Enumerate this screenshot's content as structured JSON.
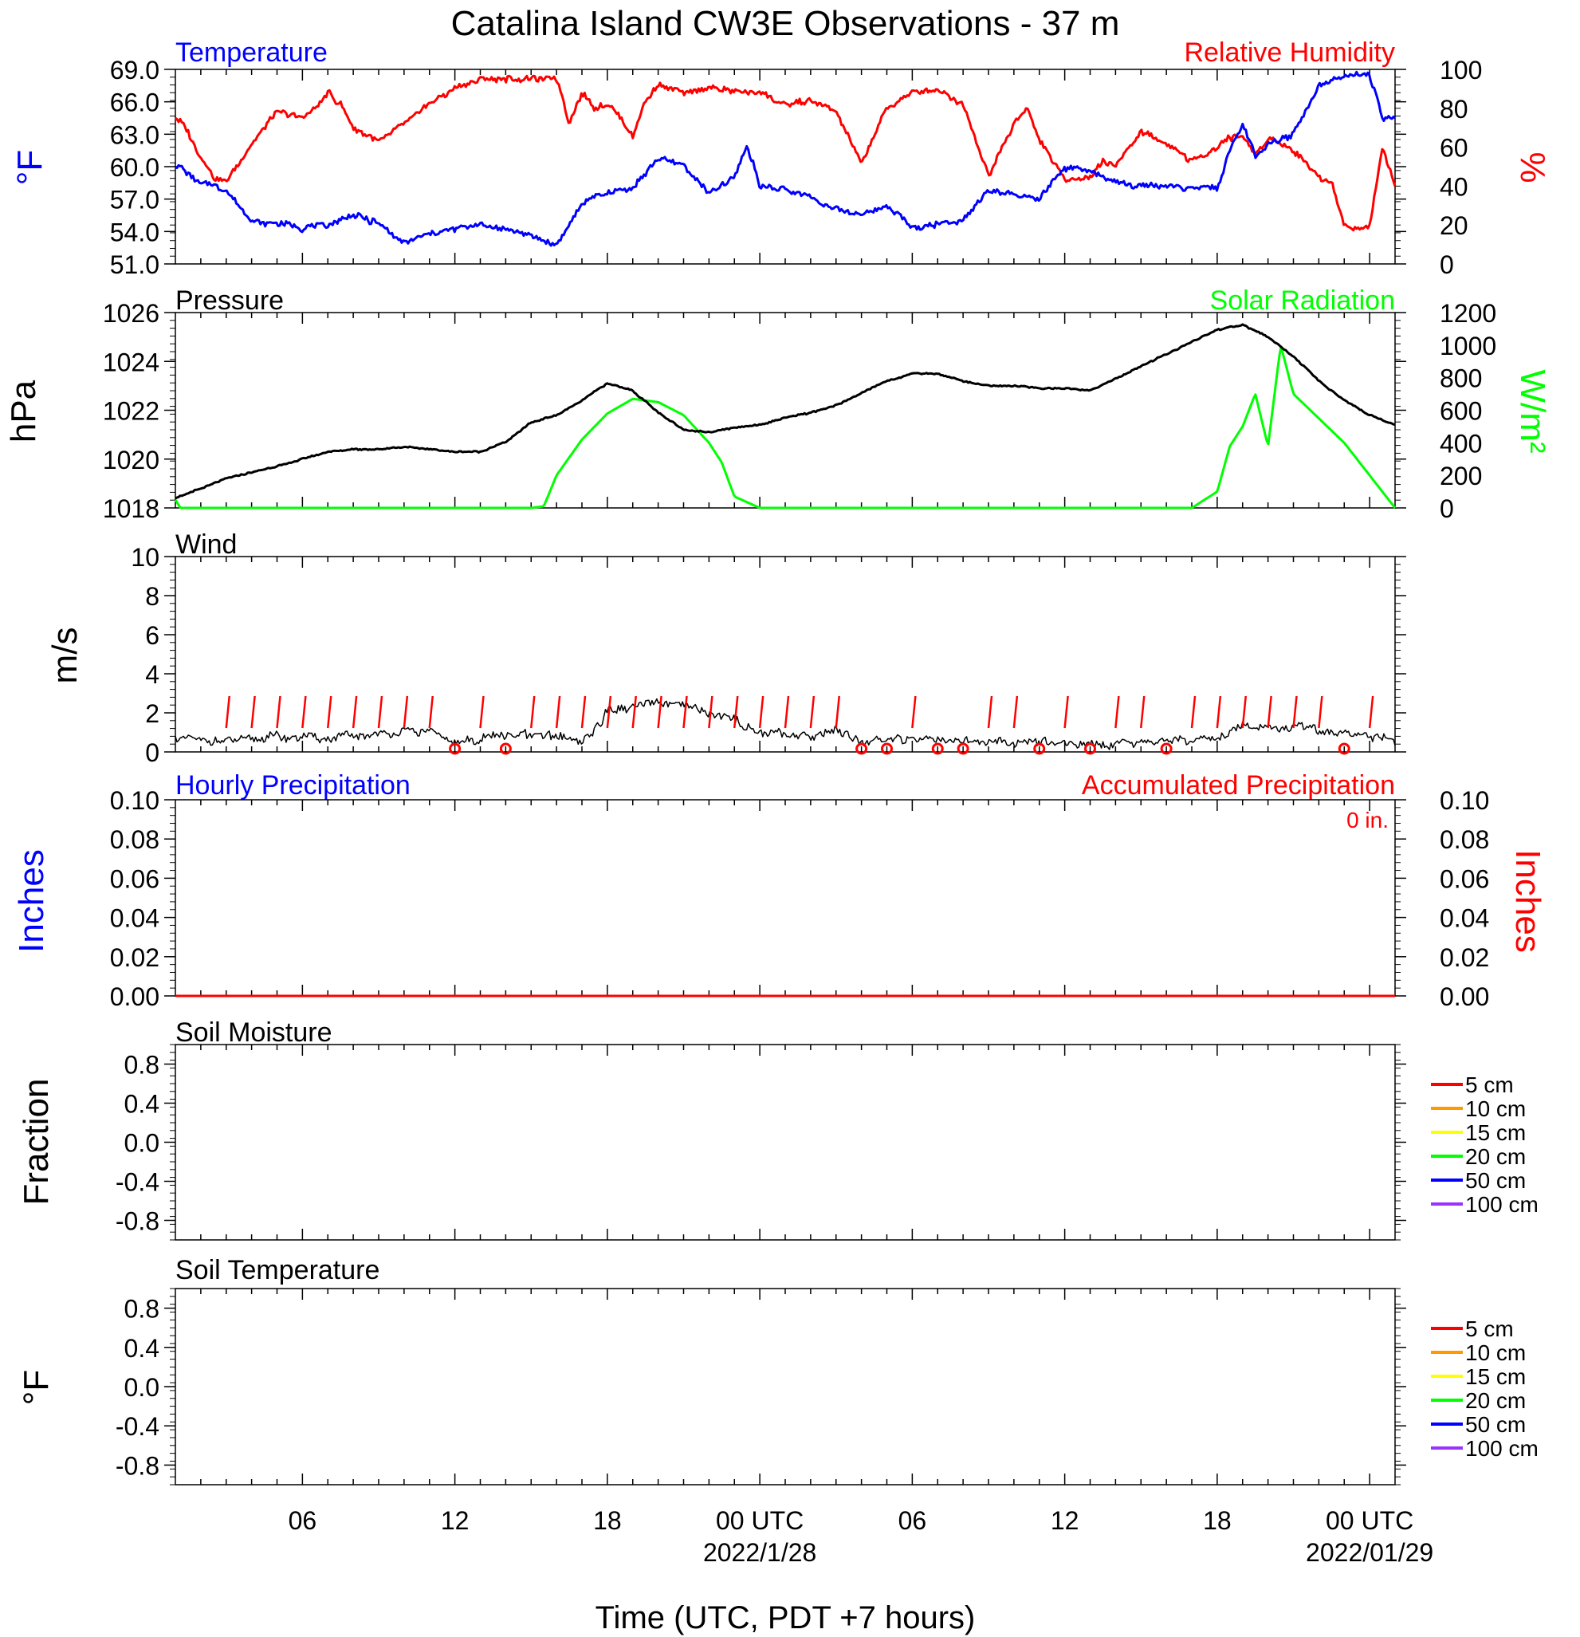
{
  "title": "Catalina Island CW3E Observations - 37 m",
  "xaxis": {
    "label": "Time (UTC, PDT +7 hours)",
    "hours_range": [
      -5,
      43
    ],
    "ticks": [
      {
        "hour": 0,
        "label": "06"
      },
      {
        "hour": 6,
        "label": "12"
      },
      {
        "hour": 12,
        "label": "18"
      },
      {
        "hour": 18,
        "label": "00 UTC",
        "sub": "2022/1/28"
      },
      {
        "hour": 24,
        "label": "06"
      },
      {
        "hour": 30,
        "label": "12"
      },
      {
        "hour": 36,
        "label": "18"
      },
      {
        "hour": 42,
        "label": "00 UTC",
        "sub": "2022/01/29"
      }
    ]
  },
  "panels": {
    "temperature": {
      "left_title": "Temperature",
      "right_title": "Relative Humidity",
      "left_unit": "°F",
      "right_unit": "%",
      "left_ticks": [
        "69.0",
        "66.0",
        "63.0",
        "60.0",
        "57.0",
        "54.0",
        "51.0"
      ],
      "right_ticks": [
        "100",
        "80",
        "60",
        "40",
        "20",
        "0"
      ]
    },
    "pressure": {
      "left_title": "Pressure",
      "right_title": "Solar Radiation",
      "left_unit": "hPa",
      "right_unit": "W/m²",
      "left_ticks": [
        "1026",
        "1024",
        "1022",
        "1020",
        "1018"
      ],
      "right_ticks": [
        "1200",
        "1000",
        "800",
        "600",
        "400",
        "200",
        "0"
      ]
    },
    "wind": {
      "left_title": "Wind",
      "left_unit": "m/s",
      "left_ticks": [
        "10",
        "8",
        "6",
        "4",
        "2",
        "0"
      ]
    },
    "precip": {
      "left_title": "Hourly Precipitation",
      "right_title": "Accumulated Precipitation",
      "left_unit": "Inches",
      "right_unit": "Inches",
      "accum_text": "0 in.",
      "left_ticks": [
        "0.10",
        "0.08",
        "0.06",
        "0.04",
        "0.02",
        "0.00"
      ],
      "right_ticks": [
        "0.10",
        "0.08",
        "0.06",
        "0.04",
        "0.02",
        "0.00"
      ]
    },
    "soil_moisture": {
      "left_title": "Soil Moisture",
      "left_unit": "Fraction",
      "left_ticks": [
        "0.8",
        "0.4",
        "0.0",
        "-0.4",
        "-0.8"
      ]
    },
    "soil_temp": {
      "left_title": "Soil Temperature",
      "left_unit": "°F",
      "left_ticks": [
        "0.8",
        "0.4",
        "0.0",
        "-0.4",
        "-0.8"
      ]
    }
  },
  "soil_legend": [
    {
      "label": "5 cm",
      "color": "#ff0000"
    },
    {
      "label": "10 cm",
      "color": "#ff9900"
    },
    {
      "label": "15 cm",
      "color": "#ffff00"
    },
    {
      "label": "20 cm",
      "color": "#00ff00"
    },
    {
      "label": "50 cm",
      "color": "#0000ff"
    },
    {
      "label": "100 cm",
      "color": "#9933ff"
    }
  ],
  "colors": {
    "temperature": "#0000ff",
    "humidity": "#ff0000",
    "pressure": "#000000",
    "solar": "#00ff00",
    "wind": "#000000",
    "barb": "#ff0000",
    "precip": "#ff0000"
  },
  "chart_data": [
    {
      "type": "line",
      "title": "Temperature",
      "ylabel": "°F",
      "ylim": [
        51,
        69
      ],
      "series": [
        {
          "name": "Temperature",
          "x": [
            -5,
            -4.5,
            -4,
            -3.5,
            -3,
            -2.5,
            -2,
            -1.5,
            -1,
            0,
            1,
            2,
            3,
            4,
            5,
            6,
            7,
            8,
            9,
            10,
            11,
            11.5,
            12,
            13,
            14,
            15,
            16,
            17,
            17.5,
            18,
            19,
            20,
            21,
            22,
            23,
            24,
            25,
            26,
            27,
            28,
            29,
            30,
            31,
            32,
            33,
            34,
            35,
            36,
            36.5,
            37,
            37.5,
            38,
            39,
            40,
            41,
            42,
            42.5,
            43
          ],
          "y": [
            60.2,
            59.4,
            58.5,
            58.3,
            57.8,
            56.5,
            55.0,
            54.6,
            54.8,
            54.3,
            54.6,
            55.6,
            54.7,
            52.9,
            53.7,
            54.3,
            54.6,
            54.2,
            53.7,
            52.8,
            56.5,
            57.3,
            57.5,
            58.0,
            60.8,
            60.2,
            57.4,
            59.0,
            62.0,
            58.3,
            57.8,
            57.2,
            56.0,
            55.6,
            56.4,
            54.4,
            54.7,
            55.1,
            57.7,
            57.4,
            57.0,
            59.9,
            59.6,
            58.5,
            58.2,
            58.3,
            57.9,
            58.0,
            61.5,
            64.0,
            61.0,
            62.0,
            63.0,
            67.5,
            68.5,
            68.5,
            64.5,
            64.5
          ]
        }
      ]
    },
    {
      "type": "line",
      "title": "Relative Humidity",
      "ylabel": "%",
      "ylim": [
        0,
        100
      ],
      "series": [
        {
          "name": "Relative Humidity",
          "x": [
            -5,
            -4.5,
            -4,
            -3.5,
            -3,
            -2,
            -1,
            0,
            0.5,
            1,
            1.5,
            2,
            3,
            4,
            5,
            6,
            7,
            8,
            9,
            10,
            10.5,
            11,
            11.5,
            12,
            12.5,
            13,
            13.5,
            14,
            15,
            16,
            17,
            18,
            19,
            20,
            21,
            22,
            23,
            24,
            25,
            26,
            27,
            28,
            28.5,
            29,
            30,
            31,
            31.5,
            32,
            33,
            34,
            35,
            36,
            36.5,
            37,
            37.5,
            38,
            39,
            40,
            40.5,
            41,
            41.5,
            42,
            42.5,
            43
          ],
          "y": [
            76,
            68,
            55,
            45,
            42,
            62,
            78,
            75,
            80,
            88,
            82,
            70,
            63,
            72,
            83,
            90,
            95,
            95,
            95,
            96,
            73,
            88,
            80,
            82,
            76,
            66,
            84,
            92,
            88,
            90,
            89,
            88,
            82,
            84,
            78,
            52,
            80,
            88,
            90,
            82,
            45,
            72,
            80,
            64,
            43,
            45,
            53,
            50,
            68,
            62,
            53,
            60,
            65,
            66,
            56,
            65,
            58,
            45,
            42,
            20,
            18,
            20,
            60,
            40
          ]
        }
      ]
    },
    {
      "type": "line",
      "title": "Pressure",
      "ylabel": "hPa",
      "ylim": [
        1018,
        1026
      ],
      "series": [
        {
          "name": "Pressure",
          "x": [
            -5,
            -3,
            -1,
            0,
            1,
            2,
            3,
            4,
            5,
            6,
            7,
            8,
            9,
            10,
            11,
            12,
            13,
            14,
            15,
            16,
            17,
            18,
            19,
            20,
            21,
            22,
            23,
            24,
            25,
            26,
            27,
            28,
            29,
            30,
            31,
            32,
            33,
            34,
            35,
            36,
            37,
            38,
            39,
            40,
            41,
            42,
            43
          ],
          "y": [
            1018.4,
            1019.2,
            1019.7,
            1020.0,
            1020.3,
            1020.4,
            1020.4,
            1020.5,
            1020.4,
            1020.3,
            1020.3,
            1020.7,
            1021.5,
            1021.8,
            1022.4,
            1023.1,
            1022.8,
            1021.9,
            1021.2,
            1021.1,
            1021.3,
            1021.4,
            1021.7,
            1021.9,
            1022.2,
            1022.7,
            1023.2,
            1023.5,
            1023.5,
            1023.2,
            1023.0,
            1023.0,
            1022.9,
            1022.9,
            1022.8,
            1023.3,
            1023.8,
            1024.3,
            1024.8,
            1025.3,
            1025.5,
            1025.0,
            1024.2,
            1023.2,
            1022.4,
            1021.8,
            1021.4
          ]
        }
      ]
    },
    {
      "type": "line",
      "title": "Solar Radiation",
      "ylabel": "W/m²",
      "ylim": [
        0,
        1200
      ],
      "series": [
        {
          "name": "Solar Radiation",
          "x": [
            -5,
            -4.8,
            9,
            9.5,
            10,
            11,
            12,
            13,
            14,
            15,
            16,
            16.5,
            17,
            18,
            26,
            30,
            34,
            35,
            35.5,
            36,
            36.5,
            37,
            37.5,
            38,
            38.5,
            39,
            40,
            41,
            42,
            43
          ],
          "y": [
            50,
            0,
            0,
            10,
            200,
            420,
            580,
            670,
            650,
            570,
            400,
            280,
            70,
            0,
            0,
            0,
            0,
            0,
            50,
            100,
            380,
            500,
            700,
            380,
            1000,
            700,
            550,
            400,
            200,
            0
          ]
        }
      ]
    },
    {
      "type": "line",
      "title": "Wind",
      "ylabel": "m/s",
      "ylim": [
        0,
        10
      ],
      "series": [
        {
          "name": "Wind",
          "x": [
            -5,
            -3,
            -1,
            1,
            3,
            5,
            6,
            7,
            9,
            11,
            11.5,
            12,
            13,
            14,
            15,
            16,
            17,
            18,
            19,
            20,
            21,
            22,
            23,
            24,
            26,
            28,
            30,
            32,
            34,
            36,
            37,
            38,
            39,
            40,
            41,
            42,
            43
          ],
          "y": [
            0.7,
            0.6,
            0.8,
            0.7,
            0.9,
            1.1,
            0.4,
            0.7,
            0.9,
            0.6,
            1.1,
            2.1,
            2.2,
            2.6,
            2.4,
            2.0,
            1.6,
            1.0,
            0.9,
            0.8,
            1.2,
            0.5,
            0.6,
            0.7,
            0.6,
            0.5,
            0.5,
            0.4,
            0.6,
            0.7,
            1.4,
            1.2,
            1.3,
            1.1,
            0.9,
            0.8,
            0.6
          ]
        }
      ]
    },
    {
      "type": "line",
      "title": "Hourly Precipitation",
      "ylabel": "Inches",
      "ylim": [
        0,
        0.1
      ],
      "series": [
        {
          "name": "Hourly Precipitation",
          "x": [
            -5,
            43
          ],
          "y": [
            0,
            0
          ]
        }
      ]
    },
    {
      "type": "line",
      "title": "Soil Moisture",
      "ylabel": "Fraction",
      "ylim": [
        -1,
        1
      ],
      "series": []
    },
    {
      "type": "line",
      "title": "Soil Temperature",
      "ylabel": "°F",
      "ylim": [
        -1,
        1
      ],
      "series": []
    }
  ]
}
